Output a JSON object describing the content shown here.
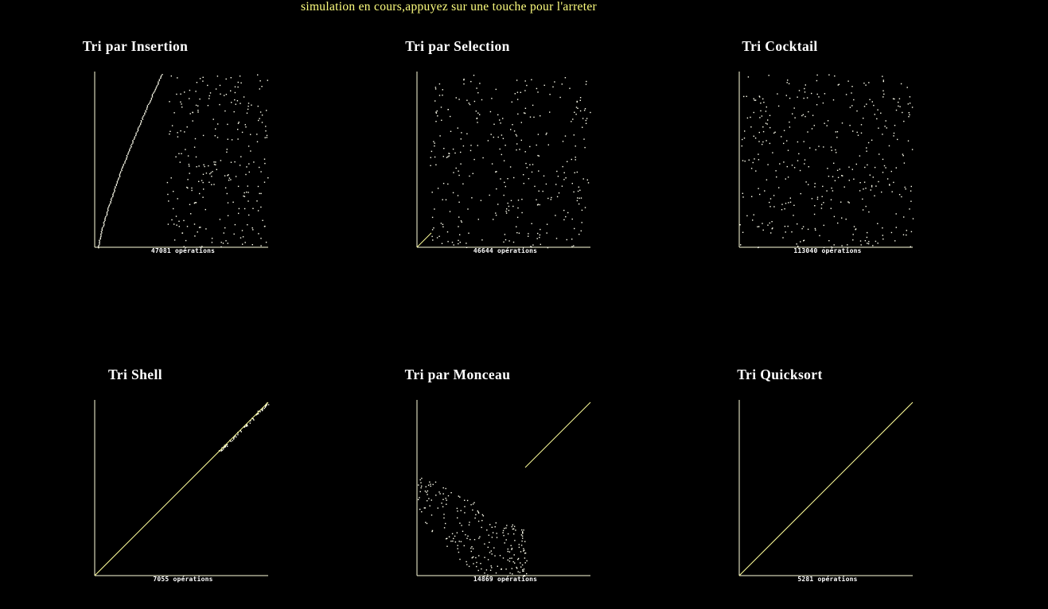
{
  "window": {
    "status_message": "simulation en cours,appuyez sur une touche pour l'arreter"
  },
  "operations_suffix": "opérations",
  "colors": {
    "background": "#000000",
    "status_text": "#ffff7f",
    "axis": "#ffffdd",
    "point": "#ffffee",
    "sorted_line": "#ffff9a"
  },
  "panels": [
    {
      "id": "insertion",
      "title": "Tri par Insertion",
      "operations": "47081",
      "state": "insertion"
    },
    {
      "id": "selection",
      "title": "Tri par Selection",
      "operations": "46644",
      "state": "selection"
    },
    {
      "id": "cocktail",
      "title": "Tri Cocktail",
      "operations": "113040",
      "state": "random"
    },
    {
      "id": "shell",
      "title": "Tri Shell",
      "operations": "7055",
      "state": "near-sorted"
    },
    {
      "id": "heap",
      "title": "Tri par Monceau",
      "operations": "14869",
      "state": "heap"
    },
    {
      "id": "quicksort",
      "title": "Tri Quicksort",
      "operations": "5281",
      "state": "sorted"
    }
  ]
}
